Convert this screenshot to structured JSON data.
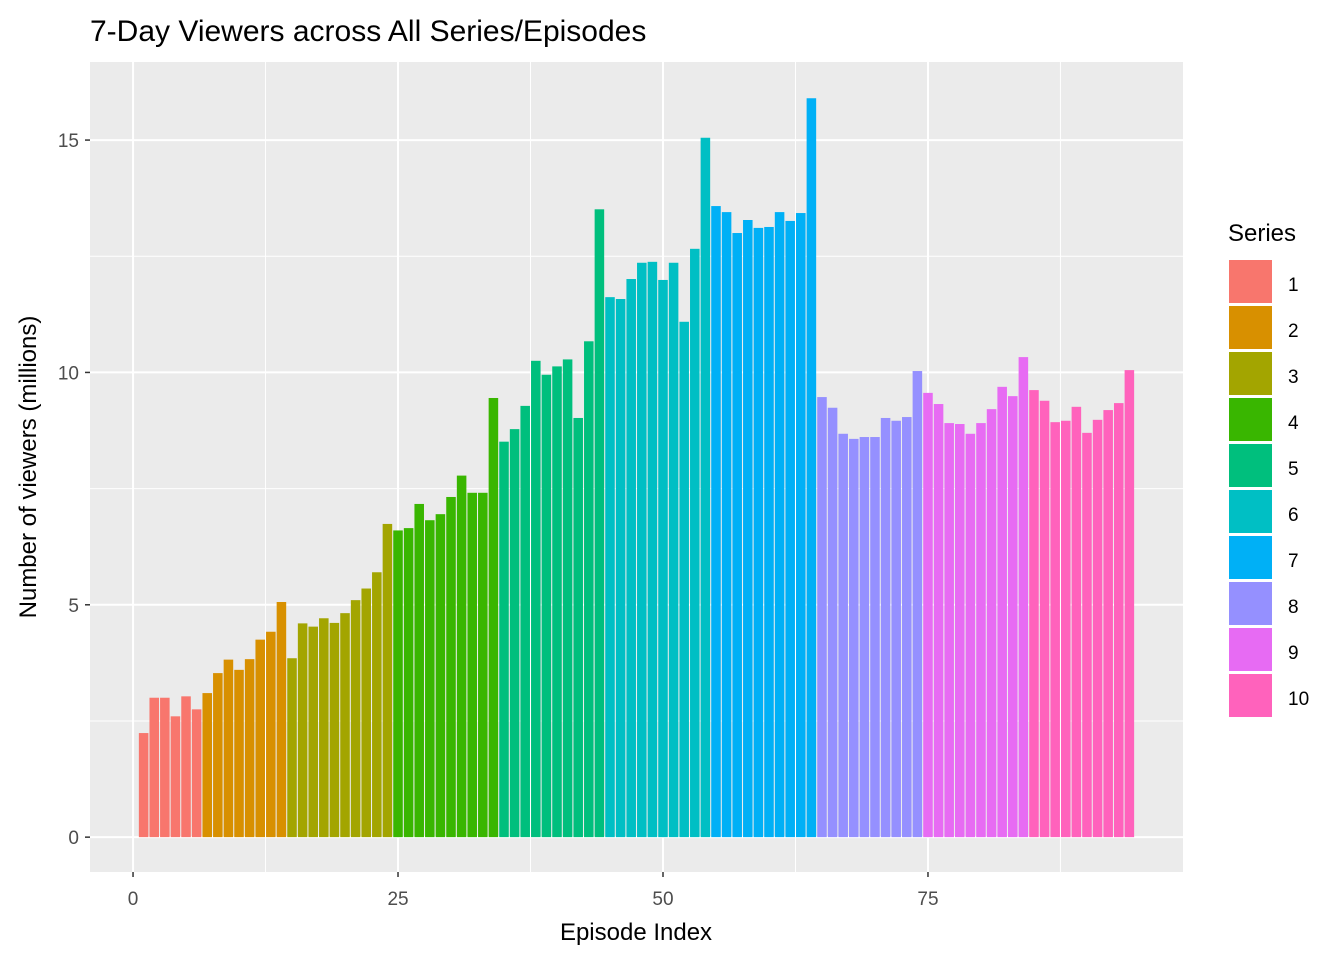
{
  "chart_data": {
    "type": "bar",
    "title": "7-Day Viewers across All Series/Episodes",
    "xlabel": "Episode Index",
    "ylabel": "Number of viewers (millions)",
    "xlim": [
      -4.06,
      99.06
    ],
    "ylim": [
      -0.75,
      16.68
    ],
    "x_ticks": [
      0,
      25,
      50,
      75
    ],
    "y_ticks": [
      0,
      5,
      10,
      15
    ],
    "grid": true,
    "legend": {
      "title": "Series",
      "placement": "right"
    },
    "series": [
      {
        "name": "1",
        "color": "#F8766D",
        "x": [
          1,
          2,
          3,
          4,
          5,
          6
        ],
        "values": [
          2.24,
          3.0,
          3.0,
          2.6,
          3.03,
          2.75
        ]
      },
      {
        "name": "2",
        "color": "#D89000",
        "x": [
          7,
          8,
          9,
          10,
          11,
          12,
          13,
          14
        ],
        "values": [
          3.1,
          3.53,
          3.82,
          3.6,
          3.83,
          4.25,
          4.42,
          5.06
        ]
      },
      {
        "name": "3",
        "color": "#A3A500",
        "x": [
          15,
          16,
          17,
          18,
          19,
          20,
          21,
          22,
          23,
          24
        ],
        "values": [
          3.85,
          4.6,
          4.53,
          4.71,
          4.61,
          4.82,
          5.1,
          5.35,
          5.7,
          6.74
        ]
      },
      {
        "name": "4",
        "color": "#39B600",
        "x": [
          25,
          26,
          27,
          28,
          29,
          30,
          31,
          32,
          33,
          34
        ],
        "values": [
          6.6,
          6.65,
          7.17,
          6.82,
          6.95,
          7.32,
          7.78,
          7.41,
          7.41,
          9.45
        ]
      },
      {
        "name": "5",
        "color": "#00BF7D",
        "x": [
          35,
          36,
          37,
          38,
          39,
          40,
          41,
          42,
          43,
          44
        ],
        "values": [
          8.51,
          8.78,
          9.28,
          10.25,
          9.95,
          10.13,
          10.28,
          9.02,
          10.67,
          13.51
        ]
      },
      {
        "name": "6",
        "color": "#00BFC4",
        "x": [
          45,
          46,
          47,
          48,
          49,
          50,
          51,
          52,
          53,
          54
        ],
        "values": [
          11.62,
          11.58,
          12.01,
          12.36,
          12.38,
          11.99,
          12.36,
          11.09,
          12.66,
          15.05
        ]
      },
      {
        "name": "7",
        "color": "#00B0F6",
        "x": [
          55,
          56,
          57,
          58,
          59,
          60,
          61,
          62,
          63,
          64
        ],
        "values": [
          13.58,
          13.45,
          13.0,
          13.28,
          13.11,
          13.13,
          13.45,
          13.26,
          13.43,
          15.9
        ]
      },
      {
        "name": "8",
        "color": "#9590FF",
        "x": [
          65,
          66,
          67,
          68,
          69,
          70,
          71,
          72,
          73,
          74
        ],
        "values": [
          9.47,
          9.24,
          8.68,
          8.57,
          8.61,
          8.61,
          9.02,
          8.96,
          9.04,
          10.03
        ]
      },
      {
        "name": "9",
        "color": "#E76BF3",
        "x": [
          75,
          76,
          77,
          78,
          79,
          80,
          81,
          82,
          83,
          84
        ],
        "values": [
          9.56,
          9.32,
          8.91,
          8.89,
          8.68,
          8.91,
          9.21,
          9.69,
          9.49,
          10.33
        ]
      },
      {
        "name": "10",
        "color": "#FF62BC",
        "x": [
          85,
          86,
          87,
          88,
          89,
          90,
          91,
          92,
          93,
          94
        ],
        "values": [
          9.62,
          9.39,
          8.93,
          8.96,
          9.26,
          8.7,
          8.98,
          9.19,
          9.34,
          10.05
        ]
      }
    ]
  }
}
